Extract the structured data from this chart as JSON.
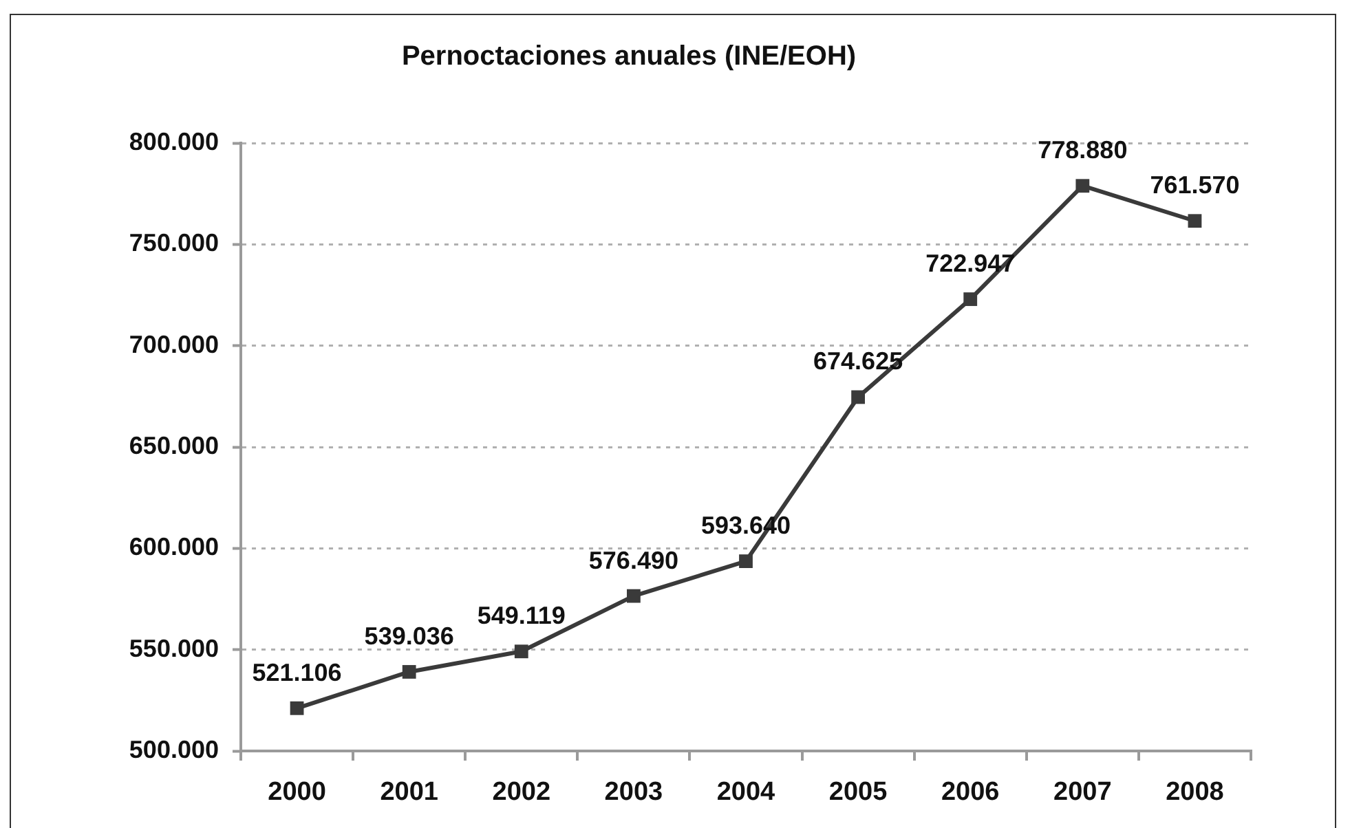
{
  "chart_data": {
    "type": "line",
    "title": "Pernoctaciones anuales (INE/EOH)",
    "categories": [
      "2000",
      "2001",
      "2002",
      "2003",
      "2004",
      "2005",
      "2006",
      "2007",
      "2008"
    ],
    "values": [
      521106,
      539036,
      549119,
      576490,
      593640,
      674625,
      722947,
      778880,
      761570
    ],
    "value_labels": [
      "521.106",
      "539.036",
      "549.119",
      "576.490",
      "593.640",
      "674.625",
      "722.947",
      "778.880",
      "761.570"
    ],
    "color": "#3a3a3a",
    "ylim": [
      500000,
      800000
    ],
    "yticks": [
      {
        "value": 500000,
        "label": "500.000"
      },
      {
        "value": 550000,
        "label": "550.000"
      },
      {
        "value": 600000,
        "label": "600.000"
      },
      {
        "value": 650000,
        "label": "650.000"
      },
      {
        "value": 700000,
        "label": "700.000"
      },
      {
        "value": 750000,
        "label": "750.000"
      },
      {
        "value": 800000,
        "label": "800.000"
      }
    ],
    "grid": "y",
    "marker": "square",
    "line_style": "solid"
  }
}
